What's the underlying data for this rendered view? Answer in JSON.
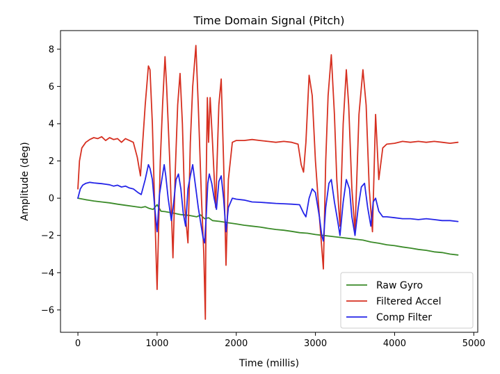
{
  "chart_data": {
    "type": "line",
    "title": "Time Domain Signal (Pitch)",
    "xlabel": "Time (millis)",
    "ylabel": "Amplitude (deg)",
    "xlim": [
      -220,
      5050
    ],
    "ylim": [
      -7.2,
      9.0
    ],
    "xticks": [
      0,
      1000,
      2000,
      3000,
      4000,
      5000
    ],
    "yticks": [
      -6,
      -4,
      -2,
      0,
      2,
      4,
      6,
      8
    ],
    "xtick_labels": [
      "0",
      "1000",
      "2000",
      "3000",
      "4000",
      "5000"
    ],
    "ytick_labels": [
      "−6",
      "−4",
      "−2",
      "0",
      "2",
      "4",
      "6",
      "8"
    ],
    "grid": false,
    "legend_position": "lower-right",
    "series": [
      {
        "name": "Raw Gyro",
        "color": "#3a8a28",
        "x": [
          0,
          100,
          200,
          300,
          400,
          500,
          600,
          700,
          800,
          850,
          900,
          950,
          1000,
          1050,
          1100,
          1200,
          1300,
          1400,
          1500,
          1550,
          1600,
          1650,
          1700,
          1800,
          1900,
          2000,
          2100,
          2200,
          2300,
          2400,
          2500,
          2600,
          2700,
          2800,
          2900,
          3000,
          3100,
          3200,
          3300,
          3400,
          3500,
          3600,
          3700,
          3800,
          3900,
          4000,
          4100,
          4200,
          4300,
          4400,
          4500,
          4600,
          4700,
          4800
        ],
        "values": [
          0.0,
          -0.08,
          -0.15,
          -0.2,
          -0.25,
          -0.32,
          -0.38,
          -0.44,
          -0.5,
          -0.45,
          -0.55,
          -0.6,
          -0.35,
          -0.7,
          -0.72,
          -0.8,
          -0.88,
          -0.92,
          -1.0,
          -0.9,
          -1.1,
          -1.05,
          -1.2,
          -1.25,
          -1.32,
          -1.38,
          -1.45,
          -1.5,
          -1.55,
          -1.62,
          -1.68,
          -1.72,
          -1.78,
          -1.85,
          -1.88,
          -1.95,
          -2.0,
          -2.05,
          -2.1,
          -2.15,
          -2.2,
          -2.25,
          -2.35,
          -2.42,
          -2.5,
          -2.55,
          -2.62,
          -2.68,
          -2.75,
          -2.8,
          -2.88,
          -2.92,
          -3.0,
          -3.05
        ]
      },
      {
        "name": "Filtered Accel",
        "color": "#d62f20",
        "x": [
          0,
          20,
          50,
          100,
          150,
          200,
          250,
          300,
          350,
          400,
          450,
          500,
          550,
          600,
          650,
          700,
          750,
          790,
          850,
          890,
          910,
          940,
          980,
          1000,
          1040,
          1070,
          1100,
          1120,
          1160,
          1200,
          1230,
          1260,
          1290,
          1320,
          1350,
          1390,
          1420,
          1450,
          1490,
          1520,
          1560,
          1590,
          1610,
          1620,
          1635,
          1650,
          1670,
          1700,
          1740,
          1780,
          1810,
          1840,
          1870,
          1900,
          1950,
          2000,
          2100,
          2200,
          2300,
          2400,
          2500,
          2600,
          2700,
          2780,
          2820,
          2850,
          2880,
          2920,
          2960,
          3000,
          3050,
          3100,
          3130,
          3160,
          3200,
          3240,
          3270,
          3310,
          3350,
          3390,
          3420,
          3460,
          3500,
          3550,
          3600,
          3640,
          3680,
          3720,
          3760,
          3800,
          3850,
          3900,
          4000,
          4100,
          4200,
          4300,
          4400,
          4500,
          4600,
          4700,
          4800
        ],
        "values": [
          0.5,
          2.0,
          2.7,
          3.0,
          3.15,
          3.25,
          3.2,
          3.3,
          3.1,
          3.25,
          3.15,
          3.2,
          3.0,
          3.2,
          3.1,
          3.0,
          2.2,
          1.2,
          5.0,
          7.1,
          6.9,
          4.0,
          -2.0,
          -4.9,
          2.0,
          5.1,
          7.6,
          6.0,
          2.0,
          -3.2,
          1.5,
          5.0,
          6.7,
          4.0,
          -0.5,
          -2.4,
          3.0,
          6.0,
          8.2,
          5.0,
          0.0,
          -3.0,
          -6.5,
          1.0,
          5.4,
          3.0,
          5.4,
          3.0,
          -0.5,
          5.0,
          6.4,
          2.0,
          -3.6,
          1.0,
          3.0,
          3.1,
          3.1,
          3.15,
          3.1,
          3.05,
          3.0,
          3.05,
          3.0,
          2.9,
          1.8,
          1.4,
          3.0,
          6.6,
          5.5,
          2.0,
          -1.0,
          -3.8,
          2.0,
          5.5,
          7.7,
          4.5,
          1.0,
          -1.5,
          4.0,
          6.9,
          5.0,
          0.5,
          -1.8,
          4.5,
          6.9,
          5.0,
          0.5,
          -1.8,
          4.5,
          1.0,
          2.7,
          2.9,
          2.95,
          3.05,
          3.0,
          3.05,
          3.0,
          3.05,
          3.0,
          2.95,
          3.0
        ]
      },
      {
        "name": "Comp Filter",
        "color": "#2424e8",
        "x": [
          0,
          30,
          60,
          100,
          150,
          200,
          250,
          300,
          350,
          400,
          450,
          500,
          550,
          600,
          650,
          700,
          760,
          800,
          850,
          890,
          910,
          940,
          970,
          1000,
          1030,
          1060,
          1090,
          1110,
          1140,
          1180,
          1210,
          1240,
          1270,
          1300,
          1330,
          1360,
          1390,
          1420,
          1450,
          1490,
          1520,
          1550,
          1580,
          1600,
          1620,
          1640,
          1660,
          1690,
          1720,
          1750,
          1780,
          1810,
          1840,
          1870,
          1900,
          1950,
          2000,
          2100,
          2200,
          2300,
          2400,
          2500,
          2600,
          2700,
          2800,
          2850,
          2880,
          2920,
          2960,
          3000,
          3050,
          3080,
          3100,
          3130,
          3170,
          3200,
          3240,
          3280,
          3310,
          3350,
          3390,
          3430,
          3460,
          3500,
          3540,
          3580,
          3620,
          3660,
          3700,
          3730,
          3760,
          3800,
          3850,
          3900,
          4000,
          4100,
          4200,
          4300,
          4400,
          4500,
          4600,
          4700,
          4800
        ],
        "values": [
          0.0,
          0.5,
          0.7,
          0.8,
          0.85,
          0.82,
          0.8,
          0.78,
          0.75,
          0.72,
          0.65,
          0.7,
          0.6,
          0.65,
          0.55,
          0.5,
          0.3,
          0.2,
          1.0,
          1.8,
          1.6,
          1.0,
          -0.5,
          -1.8,
          0.2,
          1.0,
          1.8,
          1.2,
          0.0,
          -1.2,
          -0.2,
          1.0,
          1.3,
          0.5,
          -0.8,
          -1.5,
          0.5,
          1.2,
          1.8,
          0.5,
          -0.5,
          -1.3,
          -2.1,
          -2.4,
          -1.0,
          0.8,
          1.3,
          0.8,
          0.0,
          -0.6,
          0.9,
          1.2,
          0.0,
          -1.8,
          -0.5,
          0.0,
          -0.05,
          -0.1,
          -0.2,
          -0.22,
          -0.25,
          -0.28,
          -0.3,
          -0.32,
          -0.35,
          -0.8,
          -1.0,
          0.0,
          0.5,
          0.3,
          -1.0,
          -2.0,
          -2.3,
          -0.5,
          0.8,
          1.0,
          -0.2,
          -1.2,
          -2.0,
          -0.2,
          1.0,
          0.5,
          -1.0,
          -2.0,
          -0.5,
          0.6,
          0.8,
          -0.5,
          -1.5,
          -0.2,
          0.0,
          -0.7,
          -1.0,
          -1.0,
          -1.05,
          -1.1,
          -1.1,
          -1.15,
          -1.1,
          -1.15,
          -1.2,
          -1.2,
          -1.25
        ]
      }
    ]
  }
}
